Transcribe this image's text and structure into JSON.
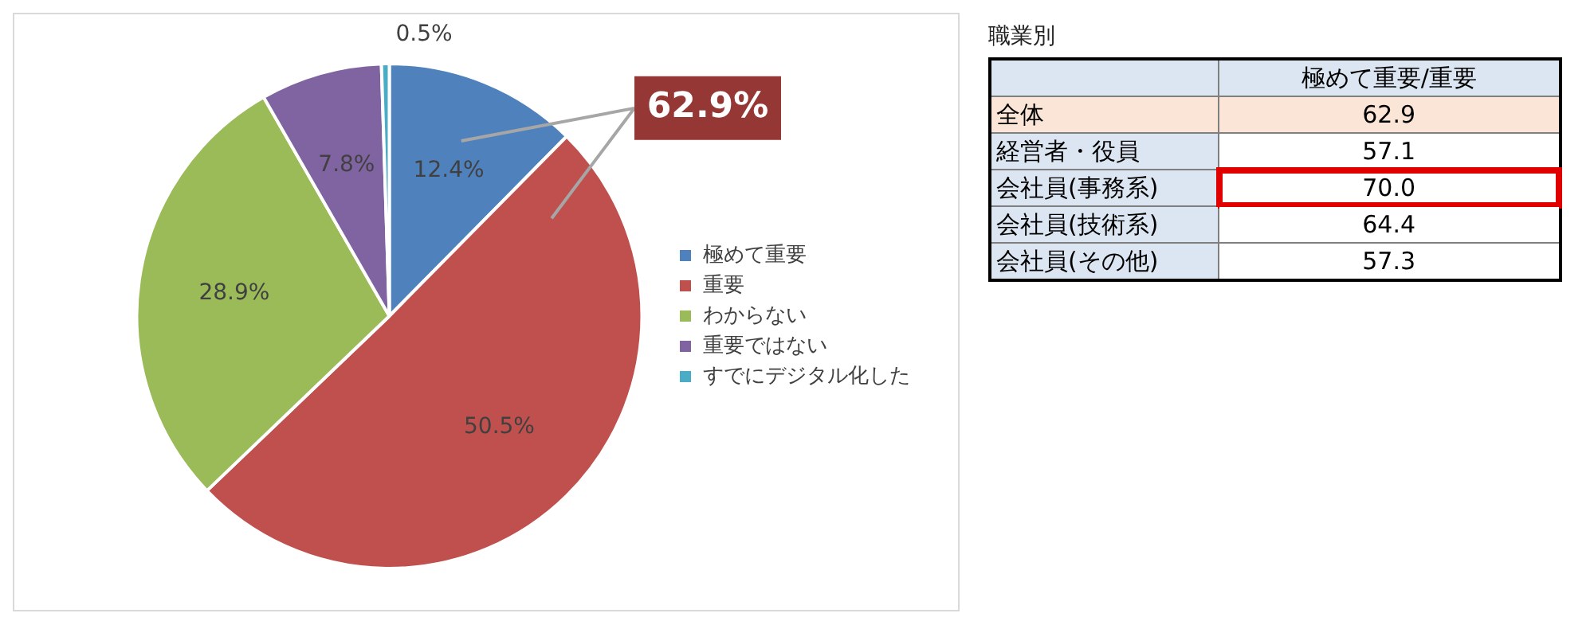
{
  "chart_data": [
    {
      "type": "pie",
      "categories": [
        "極めて重要",
        "重要",
        "わからない",
        "重要ではない",
        "すでにデジタル化した"
      ],
      "values": [
        12.4,
        50.5,
        28.9,
        7.8,
        0.5
      ],
      "colors": [
        "#4f81bd",
        "#c0504d",
        "#9bbb59",
        "#8064a2",
        "#4bacc6"
      ],
      "value_labels": [
        "12.4%",
        "50.5%",
        "28.9%",
        "7.8%",
        "0.5%"
      ],
      "legend": "right",
      "annotations": [
        "62.9%"
      ]
    },
    {
      "type": "other",
      "title": "職業別",
      "categories": [
        "全体",
        "経営者・役員",
        "会社員(事務系)",
        "会社員(技術系)",
        "会社員(その他)"
      ],
      "series": [
        {
          "name": "極めて重要/重要",
          "values": [
            62.9,
            57.1,
            70.0,
            64.4,
            57.3
          ],
          "value_labels": [
            "62.9",
            "57.1",
            "70.0",
            "64.4",
            "57.3"
          ]
        }
      ]
    }
  ]
}
